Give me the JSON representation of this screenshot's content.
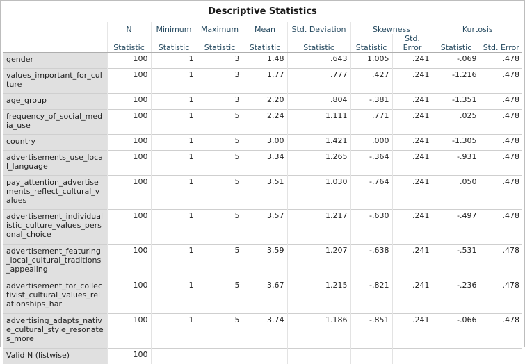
{
  "title": "Descriptive Statistics",
  "headers": {
    "n": "N",
    "minimum": "Minimum",
    "maximum": "Maximum",
    "mean": "Mean",
    "std_deviation": "Std. Deviation",
    "skewness": "Skewness",
    "kurtosis": "Kurtosis",
    "statistic": "Statistic",
    "std_error": "Std. Error"
  },
  "rows": [
    {
      "label": "gender",
      "n": "100",
      "min": "1",
      "max": "3",
      "mean": "1.48",
      "sd": ".643",
      "skew": "1.005",
      "skew_se": ".241",
      "kurt": "-.069",
      "kurt_se": ".478"
    },
    {
      "label": "values_important_for_culture",
      "n": "100",
      "min": "1",
      "max": "3",
      "mean": "1.77",
      "sd": ".777",
      "skew": ".427",
      "skew_se": ".241",
      "kurt": "-1.216",
      "kurt_se": ".478"
    },
    {
      "label": "age_group",
      "n": "100",
      "min": "1",
      "max": "3",
      "mean": "2.20",
      "sd": ".804",
      "skew": "-.381",
      "skew_se": ".241",
      "kurt": "-1.351",
      "kurt_se": ".478"
    },
    {
      "label": "frequency_of_social_media_use",
      "n": "100",
      "min": "1",
      "max": "5",
      "mean": "2.24",
      "sd": "1.111",
      "skew": ".771",
      "skew_se": ".241",
      "kurt": ".025",
      "kurt_se": ".478"
    },
    {
      "label": "country",
      "n": "100",
      "min": "1",
      "max": "5",
      "mean": "3.00",
      "sd": "1.421",
      "skew": ".000",
      "skew_se": ".241",
      "kurt": "-1.305",
      "kurt_se": ".478"
    },
    {
      "label": "advertisements_use_local_language",
      "n": "100",
      "min": "1",
      "max": "5",
      "mean": "3.34",
      "sd": "1.265",
      "skew": "-.364",
      "skew_se": ".241",
      "kurt": "-.931",
      "kurt_se": ".478"
    },
    {
      "label": "pay_attention_advertisements_reflect_cultural_values",
      "n": "100",
      "min": "1",
      "max": "5",
      "mean": "3.51",
      "sd": "1.030",
      "skew": "-.764",
      "skew_se": ".241",
      "kurt": ".050",
      "kurt_se": ".478"
    },
    {
      "label": "advertisement_individualistic_culture_values_personal_choice",
      "n": "100",
      "min": "1",
      "max": "5",
      "mean": "3.57",
      "sd": "1.217",
      "skew": "-.630",
      "skew_se": ".241",
      "kurt": "-.497",
      "kurt_se": ".478"
    },
    {
      "label": "advertisement_featuring_local_cultural_traditions_appealing",
      "n": "100",
      "min": "1",
      "max": "5",
      "mean": "3.59",
      "sd": "1.207",
      "skew": "-.638",
      "skew_se": ".241",
      "kurt": "-.531",
      "kurt_se": ".478"
    },
    {
      "label": "advertisement_for_collectivist_cultural_values_relationships_har",
      "n": "100",
      "min": "1",
      "max": "5",
      "mean": "3.67",
      "sd": "1.215",
      "skew": "-.821",
      "skew_se": ".241",
      "kurt": "-.236",
      "kurt_se": ".478"
    },
    {
      "label": "advertising_adapts_native_cultural_style_resonates_more",
      "n": "100",
      "min": "1",
      "max": "5",
      "mean": "3.74",
      "sd": "1.186",
      "skew": "-.851",
      "skew_se": ".241",
      "kurt": "-.066",
      "kurt_se": ".478"
    },
    {
      "label": "Valid N (listwise)",
      "n": "100",
      "min": "",
      "max": "",
      "mean": "",
      "sd": "",
      "skew": "",
      "skew_se": "",
      "kurt": "",
      "kurt_se": ""
    }
  ]
}
